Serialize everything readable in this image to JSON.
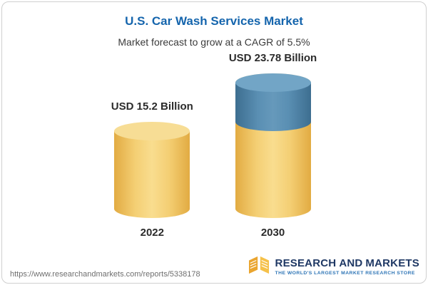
{
  "header": {
    "title": "U.S. Car Wash Services Market",
    "subtitle": "Market forecast to grow at a CAGR of 5.5%"
  },
  "chart_data": {
    "type": "bar",
    "variant": "3d-cylinder",
    "title": "U.S. Car Wash Services Market",
    "subtitle": "Market forecast to grow at a CAGR of 5.5%",
    "categories": [
      "2022",
      "2030"
    ],
    "values": [
      15.2,
      23.78
    ],
    "value_labels": [
      "USD 15.2 Billion",
      "USD 23.78 Billion"
    ],
    "unit": "USD Billion",
    "cagr_percent": 5.5,
    "legend": "none",
    "axes": "none",
    "colors": {
      "base_segment": "#f2c45c",
      "forecast_segment": "#4c84a9",
      "title": "#1565ad"
    }
  },
  "footer": {
    "url": "https://www.researchandmarkets.com/reports/5338178",
    "logo": {
      "word1": "RESEARCH",
      "word2": "AND",
      "word3": "MARKETS",
      "tagline": "THE WORLD'S LARGEST MARKET RESEARCH STORE"
    }
  }
}
